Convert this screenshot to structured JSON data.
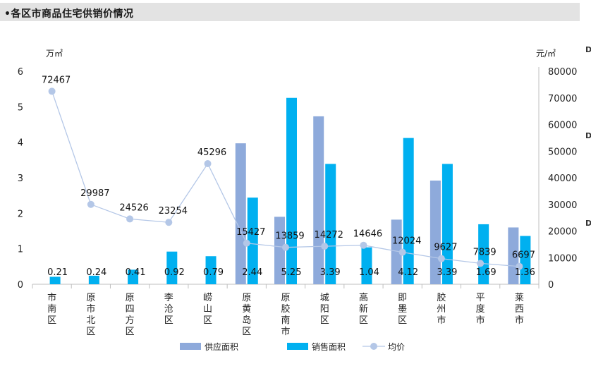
{
  "header": {
    "title": "•各区市商品住宅供销价情况",
    "edge_marks": [
      "D",
      "D",
      "D"
    ]
  },
  "chart_data": {
    "type": "bar",
    "title": "",
    "y_left_unit": "万㎡",
    "y_right_unit": "元/㎡",
    "ylim_left": [
      0,
      6
    ],
    "ylim_right": [
      0,
      80000
    ],
    "yticks_left": [
      "0",
      "1",
      "2",
      "3",
      "4",
      "5",
      "6"
    ],
    "yticks_right": [
      "0",
      "10000",
      "20000",
      "30000",
      "40000",
      "50000",
      "60000",
      "70000",
      "80000"
    ],
    "categories": [
      "市南区",
      "原市北区",
      "原四方区",
      "李沧区",
      "崂山区",
      "原黄岛区",
      "原胶南市",
      "城阳区",
      "高新区",
      "即墨区",
      "胶州市",
      "平度市",
      "莱西市"
    ],
    "series": [
      {
        "name": "供应面积",
        "type": "bar",
        "axis": "left",
        "color": "#8eaadb",
        "values": [
          0,
          0,
          0,
          0,
          0,
          3.97,
          1.9,
          4.73,
          0,
          1.82,
          2.92,
          0,
          1.6
        ]
      },
      {
        "name": "销售面积",
        "type": "bar",
        "axis": "left",
        "color": "#00b0f0",
        "values": [
          0.21,
          0.24,
          0.41,
          0.92,
          0.79,
          2.44,
          5.25,
          3.39,
          1.04,
          4.12,
          3.39,
          1.69,
          1.36
        ],
        "labels": [
          "0.21",
          "0.24",
          "0.41",
          "0.92",
          "0.79",
          "2.44",
          "5.25",
          "3.39",
          "1.04",
          "4.12",
          "3.39",
          "1.69",
          "1.36"
        ]
      },
      {
        "name": "均价",
        "type": "line",
        "axis": "right",
        "color": "#b4c7e7",
        "values": [
          72467,
          29987,
          24526,
          23254,
          45296,
          15427,
          13859,
          14272,
          14646,
          12024,
          9627,
          7839,
          6697
        ],
        "labels": [
          "72467",
          "29987",
          "24526",
          "23254",
          "45296",
          "15427",
          "13859",
          "14272",
          "14646",
          "12024",
          "9627",
          "7839",
          "6697"
        ]
      }
    ],
    "legend_position": "bottom",
    "grid": false
  }
}
